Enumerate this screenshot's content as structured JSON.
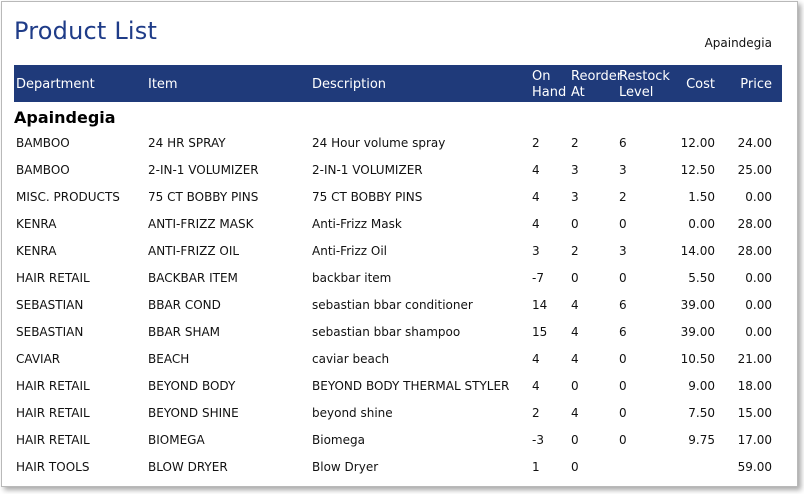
{
  "report": {
    "title": "Product List",
    "company": "Apaindegia"
  },
  "columns": {
    "department": "Department",
    "item": "Item",
    "description": "Description",
    "on_hand_1": "On",
    "on_hand_2": "Hand",
    "reorder_1": "Reorder",
    "reorder_2": "At",
    "restock_1": "Restock",
    "restock_2": "Level",
    "cost": "Cost",
    "price": "Price"
  },
  "group": {
    "name": "Apaindegia"
  },
  "rows": [
    {
      "department": "BAMBOO",
      "item": "24 HR SPRAY",
      "description": "24 Hour volume spray",
      "on_hand": "2",
      "reorder_at": "2",
      "restock_level": "6",
      "cost": "12.00",
      "price": "24.00"
    },
    {
      "department": "BAMBOO",
      "item": "2-IN-1 VOLUMIZER",
      "description": "2-IN-1 VOLUMIZER",
      "on_hand": "4",
      "reorder_at": "3",
      "restock_level": "3",
      "cost": "12.50",
      "price": "25.00"
    },
    {
      "department": "MISC. PRODUCTS",
      "item": "75 CT BOBBY PINS",
      "description": "75 CT BOBBY PINS",
      "on_hand": "4",
      "reorder_at": "3",
      "restock_level": "2",
      "cost": "1.50",
      "price": "0.00"
    },
    {
      "department": "KENRA",
      "item": "ANTI-FRIZZ MASK",
      "description": "Anti-Frizz Mask",
      "on_hand": "4",
      "reorder_at": "0",
      "restock_level": "0",
      "cost": "0.00",
      "price": "28.00"
    },
    {
      "department": "KENRA",
      "item": "ANTI-FRIZZ OIL",
      "description": "Anti-Frizz Oil",
      "on_hand": "3",
      "reorder_at": "2",
      "restock_level": "3",
      "cost": "14.00",
      "price": "28.00"
    },
    {
      "department": "HAIR RETAIL",
      "item": "BACKBAR ITEM",
      "description": "backbar item",
      "on_hand": "-7",
      "reorder_at": "0",
      "restock_level": "0",
      "cost": "5.50",
      "price": "0.00"
    },
    {
      "department": "SEBASTIAN",
      "item": "BBAR COND",
      "description": "sebastian bbar conditioner",
      "on_hand": "14",
      "reorder_at": "4",
      "restock_level": "6",
      "cost": "39.00",
      "price": "0.00"
    },
    {
      "department": "SEBASTIAN",
      "item": "BBAR SHAM",
      "description": "sebastian bbar shampoo",
      "on_hand": "15",
      "reorder_at": "4",
      "restock_level": "6",
      "cost": "39.00",
      "price": "0.00"
    },
    {
      "department": "CAVIAR",
      "item": "BEACH",
      "description": "caviar beach",
      "on_hand": "4",
      "reorder_at": "4",
      "restock_level": "0",
      "cost": "10.50",
      "price": "21.00"
    },
    {
      "department": "HAIR RETAIL",
      "item": "BEYOND BODY",
      "description": "BEYOND BODY THERMAL STYLER",
      "on_hand": "4",
      "reorder_at": "0",
      "restock_level": "0",
      "cost": "9.00",
      "price": "18.00"
    },
    {
      "department": "HAIR RETAIL",
      "item": "BEYOND SHINE",
      "description": "beyond shine",
      "on_hand": "2",
      "reorder_at": "4",
      "restock_level": "0",
      "cost": "7.50",
      "price": "15.00"
    },
    {
      "department": "HAIR RETAIL",
      "item": "BIOMEGA",
      "description": "Biomega",
      "on_hand": "-3",
      "reorder_at": "0",
      "restock_level": "0",
      "cost": "9.75",
      "price": "17.00"
    },
    {
      "department": "HAIR TOOLS",
      "item": "BLOW DRYER",
      "description": "Blow Dryer",
      "on_hand": "1",
      "reorder_at": "0",
      "restock_level": "",
      "cost": "",
      "price": "59.00"
    }
  ]
}
